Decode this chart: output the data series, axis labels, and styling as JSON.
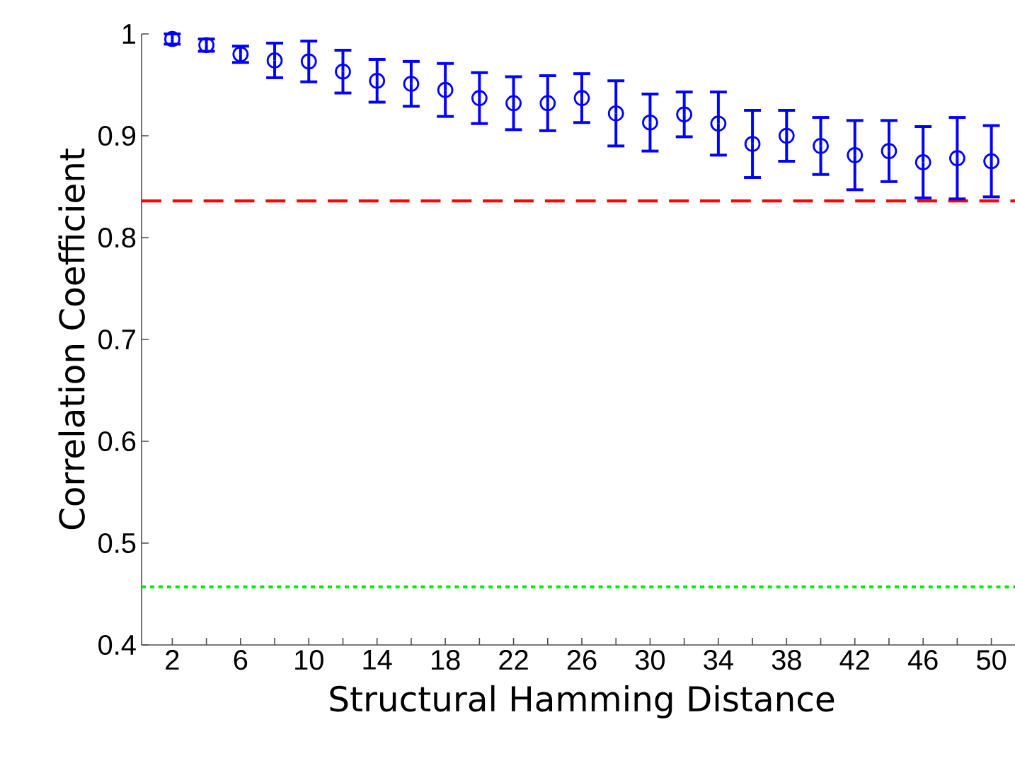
{
  "chart_data": {
    "type": "scatter",
    "xlabel": "Structural Hamming Distance",
    "ylabel": "Correlation Coefficient",
    "x": [
      2,
      4,
      6,
      8,
      10,
      12,
      14,
      16,
      18,
      20,
      22,
      24,
      26,
      28,
      30,
      32,
      34,
      36,
      38,
      40,
      42,
      44,
      46,
      48,
      50
    ],
    "series": [
      {
        "color": "#0000ff",
        "values": [
          0.995,
          0.989,
          0.98,
          0.974,
          0.973,
          0.963,
          0.954,
          0.951,
          0.945,
          0.937,
          0.932,
          0.932,
          0.937,
          0.922,
          0.913,
          0.921,
          0.912,
          0.892,
          0.9,
          0.89,
          0.881,
          0.885,
          0.874,
          0.878,
          0.875
        ],
        "errors": [
          0.005,
          0.006,
          0.008,
          0.017,
          0.02,
          0.021,
          0.021,
          0.022,
          0.026,
          0.025,
          0.026,
          0.027,
          0.024,
          0.032,
          0.028,
          0.022,
          0.031,
          0.033,
          0.025,
          0.028,
          0.034,
          0.03,
          0.035,
          0.04,
          0.035
        ]
      }
    ],
    "marker": "circle",
    "ref_lines": [
      {
        "axis": "y",
        "value": 0.836,
        "color": "#ff0000",
        "line_style": "dashed"
      },
      {
        "axis": "y",
        "value": 0.457,
        "color": "#00ee00",
        "line_style": "dotted"
      }
    ],
    "xlim": [
      0.2,
      51.8
    ],
    "ylim": [
      0.4,
      1.0
    ],
    "xticks": [
      2,
      {
        "value": 4,
        "label": null
      },
      6,
      {
        "value": 8,
        "label": null
      },
      10,
      {
        "value": 12,
        "label": null
      },
      14,
      {
        "value": 16,
        "label": null
      },
      18,
      {
        "value": 20,
        "label": null
      },
      22,
      {
        "value": 24,
        "label": null
      },
      26,
      {
        "value": 28,
        "label": null
      },
      30,
      {
        "value": 32,
        "label": null
      },
      34,
      {
        "value": 36,
        "label": null
      },
      38,
      {
        "value": 40,
        "label": null
      },
      42,
      {
        "value": 44,
        "label": null
      },
      46,
      {
        "value": 48,
        "label": null
      },
      50
    ],
    "yticks": [
      0.4,
      0.5,
      0.6,
      0.7,
      0.8,
      0.9,
      {
        "value": 1.0,
        "label": "1"
      }
    ]
  }
}
